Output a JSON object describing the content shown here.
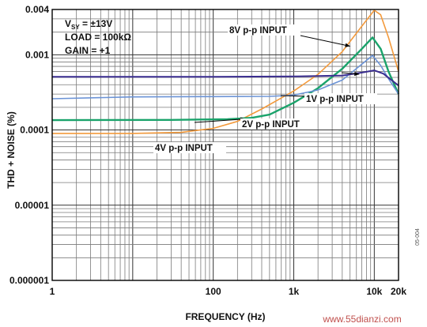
{
  "chart_data": {
    "type": "line",
    "xlabel": "FREQUENCY (Hz)",
    "ylabel": "THD + NOISE (%)",
    "xscale": "log",
    "yscale": "log",
    "xlim": [
      1,
      20000
    ],
    "ylim": [
      1e-06,
      0.004
    ],
    "grid": true,
    "x_tick_labels": [
      {
        "value": 1,
        "label": "1"
      },
      {
        "value": 100,
        "label": "100"
      },
      {
        "value": 1000,
        "label": "1k"
      },
      {
        "value": 10000,
        "label": "10k"
      },
      {
        "value": 20000,
        "label": "20k"
      }
    ],
    "y_tick_labels": [
      {
        "value": 0.004,
        "label": "0.004"
      },
      {
        "value": 0.001,
        "label": "0.001"
      },
      {
        "value": 0.0001,
        "label": "0.0001"
      },
      {
        "value": 1e-05,
        "label": "0.00001"
      },
      {
        "value": 1e-06,
        "label": "0.000001"
      }
    ],
    "conditions": [
      "V",
      "SY",
      " = ±13V",
      "LOAD = 100kΩ",
      "GAIN = +1"
    ],
    "series": [
      {
        "name": "8V p-p INPUT",
        "color": "#f39a3c",
        "points": [
          [
            1,
            9e-05
          ],
          [
            10,
            9e-05
          ],
          [
            40,
            9.3e-05
          ],
          [
            100,
            0.000105
          ],
          [
            200,
            0.00013
          ],
          [
            400,
            0.00019
          ],
          [
            1000,
            0.00033
          ],
          [
            2000,
            0.00055
          ],
          [
            4000,
            0.0011
          ],
          [
            7000,
            0.0024
          ],
          [
            10000,
            0.0039
          ],
          [
            12000,
            0.0034
          ],
          [
            15000,
            0.0017
          ],
          [
            20000,
            0.0006
          ]
        ]
      },
      {
        "name": "4V p-p INPUT",
        "color": "#1aa36b",
        "points": [
          [
            1,
            0.000135
          ],
          [
            30,
            0.000136
          ],
          [
            150,
            0.000139
          ],
          [
            300,
            0.000145
          ],
          [
            500,
            0.00016
          ],
          [
            1000,
            0.00023
          ],
          [
            2000,
            0.00036
          ],
          [
            4000,
            0.00065
          ],
          [
            7000,
            0.0012
          ],
          [
            9500,
            0.0017
          ],
          [
            12000,
            0.0012
          ],
          [
            15000,
            0.0006
          ],
          [
            20000,
            0.0003
          ]
        ]
      },
      {
        "name": "2V p-p INPUT",
        "color": "#6b93d6",
        "points": [
          [
            1,
            0.00026
          ],
          [
            10,
            0.000275
          ],
          [
            100,
            0.000278
          ],
          [
            500,
            0.00028
          ],
          [
            1000,
            0.00029
          ],
          [
            2000,
            0.00034
          ],
          [
            4000,
            0.00046
          ],
          [
            7000,
            0.00075
          ],
          [
            9500,
            0.00098
          ],
          [
            12000,
            0.00072
          ],
          [
            15000,
            0.00048
          ],
          [
            20000,
            0.0003
          ]
        ]
      },
      {
        "name": "1V p-p INPUT",
        "color": "#3a2d8f",
        "points": [
          [
            1,
            0.00051
          ],
          [
            100,
            0.00051
          ],
          [
            1000,
            0.000515
          ],
          [
            4000,
            0.00053
          ],
          [
            7000,
            0.00058
          ],
          [
            10000,
            0.00062
          ],
          [
            13000,
            0.00056
          ],
          [
            16000,
            0.00047
          ],
          [
            20000,
            0.00039
          ]
        ]
      }
    ],
    "annotations": [
      {
        "series": "8V p-p INPUT",
        "label": "8V p-p INPUT",
        "x": 5000,
        "y": 0.0013
      },
      {
        "series": "4V p-p INPUT",
        "label": "4V p-p INPUT",
        "x": 250,
        "y": 0.00014
      },
      {
        "series": "2V p-p INPUT",
        "label": "2V p-p INPUT",
        "x": 1600,
        "y": 0.00028
      },
      {
        "series": "1V p-p INPUT",
        "label": "1V p-p INPUT",
        "x": 6500,
        "y": 0.00055
      }
    ],
    "figure_code": "05-004"
  },
  "watermark": "www.55dianzi.com"
}
